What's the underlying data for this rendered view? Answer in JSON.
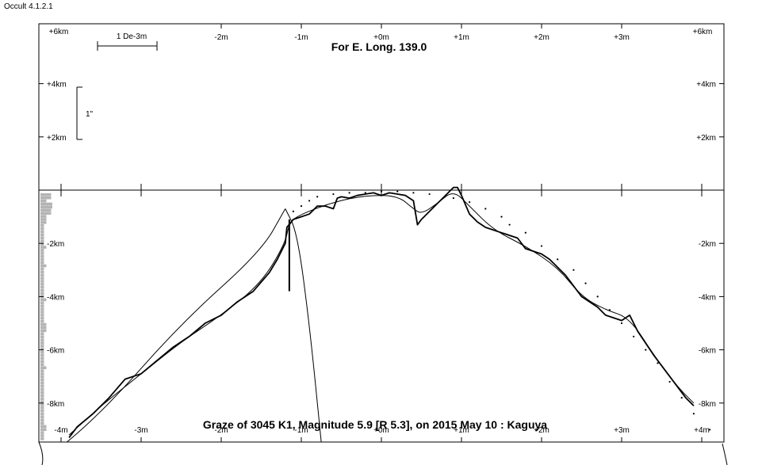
{
  "app": {
    "title": "Occult 4.1.2.1"
  },
  "chart_data": {
    "type": "line",
    "title": "For E. Long. 139.0",
    "caption": "Graze of 3045 K1,  Magnitude 5.9 [R 5.3],  on 2015 May 10  :  Kaguya",
    "x_axis": {
      "unit": "m",
      "range": [
        -4.3,
        4.3
      ],
      "top_ticks": [
        {
          "value": -2,
          "label": "-2m"
        },
        {
          "value": -1,
          "label": "-1m"
        },
        {
          "value": 0,
          "label": "+0m"
        },
        {
          "value": 1,
          "label": "+1m"
        },
        {
          "value": 2,
          "label": "+2m"
        },
        {
          "value": 3,
          "label": "+3m"
        }
      ],
      "bottom_ticks": [
        {
          "value": -4,
          "label": "-4m"
        },
        {
          "value": -3,
          "label": "-3m"
        },
        {
          "value": -2,
          "label": "-2m"
        },
        {
          "value": -1,
          "label": "-1m"
        },
        {
          "value": 0,
          "label": "+0m"
        },
        {
          "value": 1,
          "label": "+1m"
        },
        {
          "value": 2,
          "label": "+2m"
        },
        {
          "value": 3,
          "label": "+3m"
        },
        {
          "value": 4,
          "label": "+4m"
        }
      ],
      "corner_labels": [
        "+6km",
        "+6km"
      ]
    },
    "y_axis": {
      "unit": "km",
      "range": [
        -9.5,
        6.0
      ],
      "ticks": [
        {
          "value": 4,
          "label": "+4km"
        },
        {
          "value": 2,
          "label": "+2km"
        },
        {
          "value": -2,
          "label": "-2km"
        },
        {
          "value": -4,
          "label": "-4km"
        },
        {
          "value": -6,
          "label": "-6km"
        },
        {
          "value": -8,
          "label": "-8km"
        }
      ]
    },
    "scale_bars": {
      "horizontal_label": "1 De-3m",
      "vertical_label": "1\""
    },
    "limb_profile": [
      [
        -3.9,
        -9.3
      ],
      [
        -3.8,
        -8.9
      ],
      [
        -3.6,
        -8.4
      ],
      [
        -3.4,
        -7.8
      ],
      [
        -3.2,
        -7.1
      ],
      [
        -3.0,
        -6.9
      ],
      [
        -2.8,
        -6.4
      ],
      [
        -2.6,
        -5.9
      ],
      [
        -2.4,
        -5.5
      ],
      [
        -2.2,
        -5.0
      ],
      [
        -2.0,
        -4.7
      ],
      [
        -1.8,
        -4.2
      ],
      [
        -1.6,
        -3.8
      ],
      [
        -1.4,
        -3.1
      ],
      [
        -1.3,
        -2.6
      ],
      [
        -1.2,
        -2.0
      ],
      [
        -1.18,
        -1.4
      ],
      [
        -1.1,
        -1.1
      ],
      [
        -1.0,
        -1.0
      ],
      [
        -0.9,
        -0.9
      ],
      [
        -0.8,
        -0.6
      ],
      [
        -0.7,
        -0.6
      ],
      [
        -0.6,
        -0.7
      ],
      [
        -0.55,
        -0.3
      ],
      [
        -0.5,
        -0.25
      ],
      [
        -0.4,
        -0.3
      ],
      [
        -0.3,
        -0.2
      ],
      [
        -0.2,
        -0.15
      ],
      [
        -0.1,
        -0.1
      ],
      [
        0.0,
        -0.2
      ],
      [
        0.1,
        -0.1
      ],
      [
        0.2,
        -0.15
      ],
      [
        0.3,
        -0.2
      ],
      [
        0.4,
        -0.4
      ],
      [
        0.45,
        -1.3
      ],
      [
        0.5,
        -1.1
      ],
      [
        0.6,
        -0.8
      ],
      [
        0.7,
        -0.5
      ],
      [
        0.8,
        -0.2
      ],
      [
        0.9,
        0.1
      ],
      [
        0.95,
        0.1
      ],
      [
        1.0,
        -0.2
      ],
      [
        1.1,
        -0.9
      ],
      [
        1.2,
        -1.2
      ],
      [
        1.3,
        -1.4
      ],
      [
        1.5,
        -1.6
      ],
      [
        1.7,
        -1.8
      ],
      [
        1.8,
        -2.2
      ],
      [
        2.0,
        -2.4
      ],
      [
        2.1,
        -2.6
      ],
      [
        2.2,
        -2.9
      ],
      [
        2.3,
        -3.2
      ],
      [
        2.4,
        -3.6
      ],
      [
        2.5,
        -4.0
      ],
      [
        2.7,
        -4.4
      ],
      [
        2.8,
        -4.7
      ],
      [
        3.0,
        -4.9
      ],
      [
        3.1,
        -4.7
      ],
      [
        3.2,
        -5.3
      ],
      [
        3.4,
        -6.2
      ],
      [
        3.6,
        -7.0
      ],
      [
        3.8,
        -7.8
      ],
      [
        3.9,
        -8.1
      ]
    ],
    "smooth_profile": [
      [
        -3.9,
        -9.2
      ],
      [
        -3.5,
        -8.1
      ],
      [
        -3.0,
        -6.9
      ],
      [
        -2.5,
        -5.7
      ],
      [
        -2.0,
        -4.7
      ],
      [
        -1.5,
        -3.5
      ],
      [
        -1.2,
        -2.0
      ],
      [
        -1.15,
        -1.2
      ],
      [
        -1.0,
        -0.9
      ],
      [
        -0.6,
        -0.45
      ],
      [
        -0.2,
        -0.2
      ],
      [
        0.2,
        -0.2
      ],
      [
        0.4,
        -0.7
      ],
      [
        0.5,
        -0.9
      ],
      [
        0.7,
        -0.5
      ],
      [
        0.9,
        0.0
      ],
      [
        1.1,
        -0.6
      ],
      [
        1.4,
        -1.5
      ],
      [
        1.8,
        -2.1
      ],
      [
        2.2,
        -2.9
      ],
      [
        2.5,
        -4.0
      ],
      [
        2.8,
        -4.5
      ],
      [
        3.1,
        -4.8
      ],
      [
        3.4,
        -6.2
      ],
      [
        3.7,
        -7.4
      ],
      [
        3.9,
        -8.0
      ]
    ],
    "predicted_limb_dots": [
      [
        -1.1,
        -0.8
      ],
      [
        -1.0,
        -0.6
      ],
      [
        -0.9,
        -0.4
      ],
      [
        -0.8,
        -0.25
      ],
      [
        -0.6,
        -0.15
      ],
      [
        -0.4,
        -0.1
      ],
      [
        -0.2,
        -0.1
      ],
      [
        0.0,
        -0.05
      ],
      [
        0.2,
        -0.05
      ],
      [
        0.4,
        -0.1
      ],
      [
        0.6,
        -0.15
      ],
      [
        0.9,
        -0.3
      ],
      [
        1.1,
        -0.45
      ],
      [
        1.3,
        -0.7
      ],
      [
        1.5,
        -1.0
      ],
      [
        1.6,
        -1.3
      ],
      [
        1.8,
        -1.6
      ],
      [
        2.0,
        -2.1
      ],
      [
        2.2,
        -2.6
      ],
      [
        2.4,
        -3.0
      ],
      [
        2.55,
        -3.5
      ],
      [
        2.7,
        -4.0
      ],
      [
        2.85,
        -4.5
      ],
      [
        3.0,
        -5.0
      ],
      [
        3.15,
        -5.5
      ],
      [
        3.3,
        -6.0
      ],
      [
        3.45,
        -6.5
      ],
      [
        3.6,
        -7.2
      ],
      [
        3.75,
        -7.8
      ],
      [
        3.9,
        -8.4
      ],
      [
        4.1,
        -9.0
      ]
    ],
    "event_marker": {
      "x": -1.15,
      "y_from": -1.1,
      "y_to": -3.8
    },
    "path_curves": [
      {
        "points": [
          [
            -4.3,
            -10.4
          ],
          [
            -3.5,
            -8.4
          ],
          [
            -2.5,
            -5.0
          ],
          [
            -1.5,
            -2.3
          ],
          [
            -1.2,
            -0.7
          ]
        ]
      },
      {
        "points": [
          [
            -1.2,
            -0.7
          ],
          [
            -1.05,
            -1.6
          ],
          [
            -0.9,
            -5.0
          ],
          [
            -0.75,
            -9.5
          ]
        ]
      },
      {
        "points": [
          [
            4.25,
            -9.6
          ],
          [
            4.3,
            -10.4
          ]
        ]
      }
    ],
    "histogram": [
      0.9,
      0.9,
      0.5,
      1.0,
      1.0,
      0.9,
      0.9,
      0.5,
      0.5,
      0.5,
      0.3,
      0.3,
      0.3,
      0.3,
      0.3,
      0.3,
      0.3,
      0.5,
      0.3,
      0.3,
      0.3,
      0.3,
      0.3,
      0.5,
      0.3,
      0.3,
      0.3,
      0.3,
      0.3,
      0.3,
      0.3,
      0.3,
      0.3,
      0.3,
      0.5,
      0.3,
      0.3,
      0.3,
      0.3,
      0.3,
      0.3,
      0.3,
      0.5,
      0.5,
      0.5,
      0.3,
      0.3,
      0.3,
      0.3,
      0.3,
      0.3,
      0.3,
      0.3,
      0.3,
      0.3,
      0.3,
      0.5,
      0.3,
      0.3,
      0.3,
      0.3,
      0.3,
      0.3,
      0.3,
      0.3,
      0.3,
      0.3,
      0.3,
      0.3,
      0.3,
      0.3,
      0.3,
      0.3,
      0.3,
      0.3,
      0.5,
      0.5,
      0.3,
      0.3,
      0.3
    ],
    "colors": {
      "axis": "#000000",
      "histogram": "#b4b4b4",
      "background": "#ffffff"
    }
  }
}
